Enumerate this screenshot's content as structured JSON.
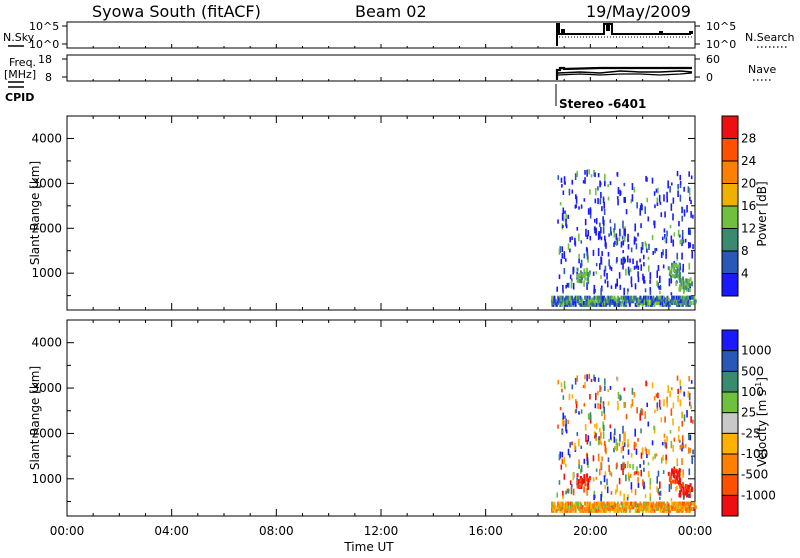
{
  "header": {
    "station": "Syowa South (fitACF)",
    "beam": "Beam 02",
    "date": "19/May/2009"
  },
  "panels": {
    "nsky_label": "N.Sky",
    "nsearch_label": "N.Search",
    "freq_label_1": "Freq.",
    "freq_label_2": "[MHz]",
    "nave_label": "Nave",
    "cpid_label": "CPID",
    "cpid_value": "Stereo  -6401",
    "noise_ticks": [
      "10^5",
      "10^0"
    ],
    "noise_right_ticks": [
      "10^5",
      "10^0"
    ],
    "freq_ticks": [
      "18",
      "8"
    ],
    "nave_ticks": [
      "60",
      "0"
    ]
  },
  "colors": {
    "power_scale": [
      "#1a1aff",
      "#2a58b8",
      "#3a8a70",
      "#70c040",
      "#f0b000",
      "#ff8000",
      "#ff5000",
      "#ee1010"
    ],
    "velocity_scale": [
      "#ee1010",
      "#ff5000",
      "#ff8000",
      "#ffb000",
      "#c8c8c8",
      "#70c040",
      "#3a8a70",
      "#2a58b8",
      "#1a1aff"
    ]
  },
  "chart_data": [
    {
      "type": "heatmap",
      "panel": "power",
      "ylabel": "Slant Range [km]",
      "ylim": [
        180,
        4500
      ],
      "yticks": [
        1000,
        2000,
        3000,
        4000
      ],
      "xlim": [
        0,
        24
      ],
      "colorbar": {
        "label": "Power [dB]",
        "range": [
          0,
          32
        ],
        "ticks": [
          "4",
          "8",
          "12",
          "16",
          "20",
          "24",
          "28"
        ]
      },
      "observation_window_ut": [
        18.5,
        24
      ],
      "features": [
        {
          "x_range": [
            18.5,
            24
          ],
          "y_range": [
            250,
            450
          ],
          "value_range": [
            4,
            16
          ]
        },
        {
          "x_range": [
            18.6,
            24
          ],
          "y_range": [
            500,
            3200
          ],
          "value_range": [
            4,
            16
          ]
        }
      ]
    },
    {
      "type": "heatmap",
      "panel": "velocity",
      "ylabel": "Slant Range [km]",
      "ylim": [
        180,
        4500
      ],
      "yticks": [
        1000,
        2000,
        3000,
        4000
      ],
      "xlim": [
        0,
        24
      ],
      "xlabel": "Time UT",
      "xticks": [
        "00:00",
        "04:00",
        "08:00",
        "12:00",
        "16:00",
        "20:00",
        "00:00"
      ],
      "colorbar": {
        "label": "Velocity [m s^-1]",
        "ticks": [
          "1000",
          "500",
          "100",
          "25",
          "-25",
          "-100",
          "-500",
          "-1000"
        ]
      },
      "observation_window_ut": [
        18.5,
        24
      ],
      "features": [
        {
          "x_range": [
            18.5,
            24
          ],
          "y_range": [
            250,
            450
          ],
          "value_range": [
            -500,
            -100
          ]
        },
        {
          "x_range": [
            18.6,
            24
          ],
          "y_range": [
            500,
            3200
          ],
          "value_range": [
            -1000,
            1000
          ]
        }
      ]
    }
  ]
}
